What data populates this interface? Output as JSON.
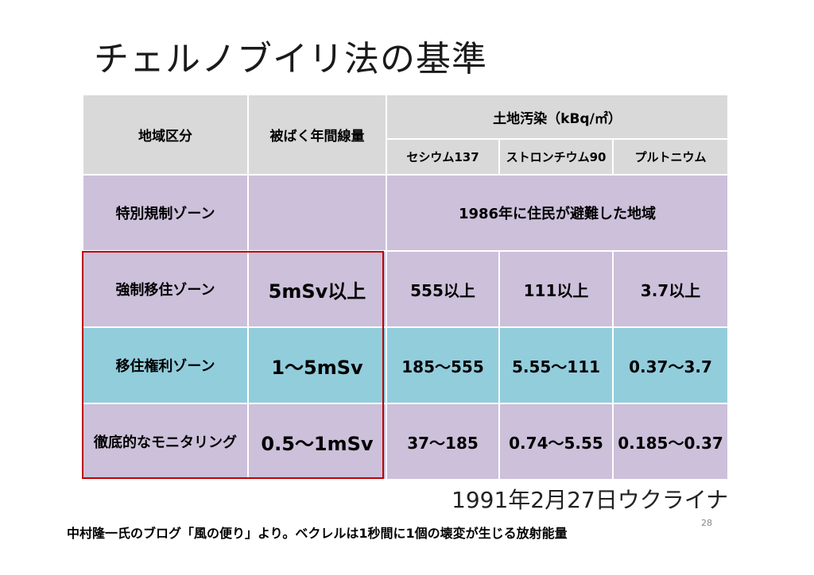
{
  "title": "チェルノブイリ法の基準",
  "table": {
    "headers": {
      "region": "地域区分",
      "annual_dose": "被ばく年間線量",
      "soil": "土地汚染（kBq/㎡）",
      "cesium": "セシウム137",
      "strontium": "ストロンチウム90",
      "plutonium": "プルトニウム"
    },
    "rows": [
      {
        "zone": "特別規制ゾーン",
        "dose": "",
        "merged": "1986年に住民が避難した地域"
      },
      {
        "zone": "強制移住ゾーン",
        "dose": "5mSv以上",
        "cesium": "555以上",
        "strontium": "111以上",
        "plutonium": "3.7以上"
      },
      {
        "zone": "移住権利ゾーン",
        "dose": "1～5mSv",
        "cesium": "185～555",
        "strontium": "5.55～111",
        "plutonium": "0.37～3.7"
      },
      {
        "zone": "徹底的なモニタリング",
        "dose": "0.5～1mSv",
        "cesium": "37～185",
        "strontium": "0.74～5.55",
        "plutonium": "0.185～0.37"
      }
    ]
  },
  "date_caption": "1991年2月27日ウクライナ",
  "footnote": "中村隆一氏のブログ「風の便り」より。ベクレルは1秒間に1個の壊変が生じる放射能量",
  "page_number": "28",
  "colors": {
    "header": "#d9d9d9",
    "purple": "#ccc0da",
    "teal": "#92cddc",
    "highlight_border": "#c00000"
  }
}
